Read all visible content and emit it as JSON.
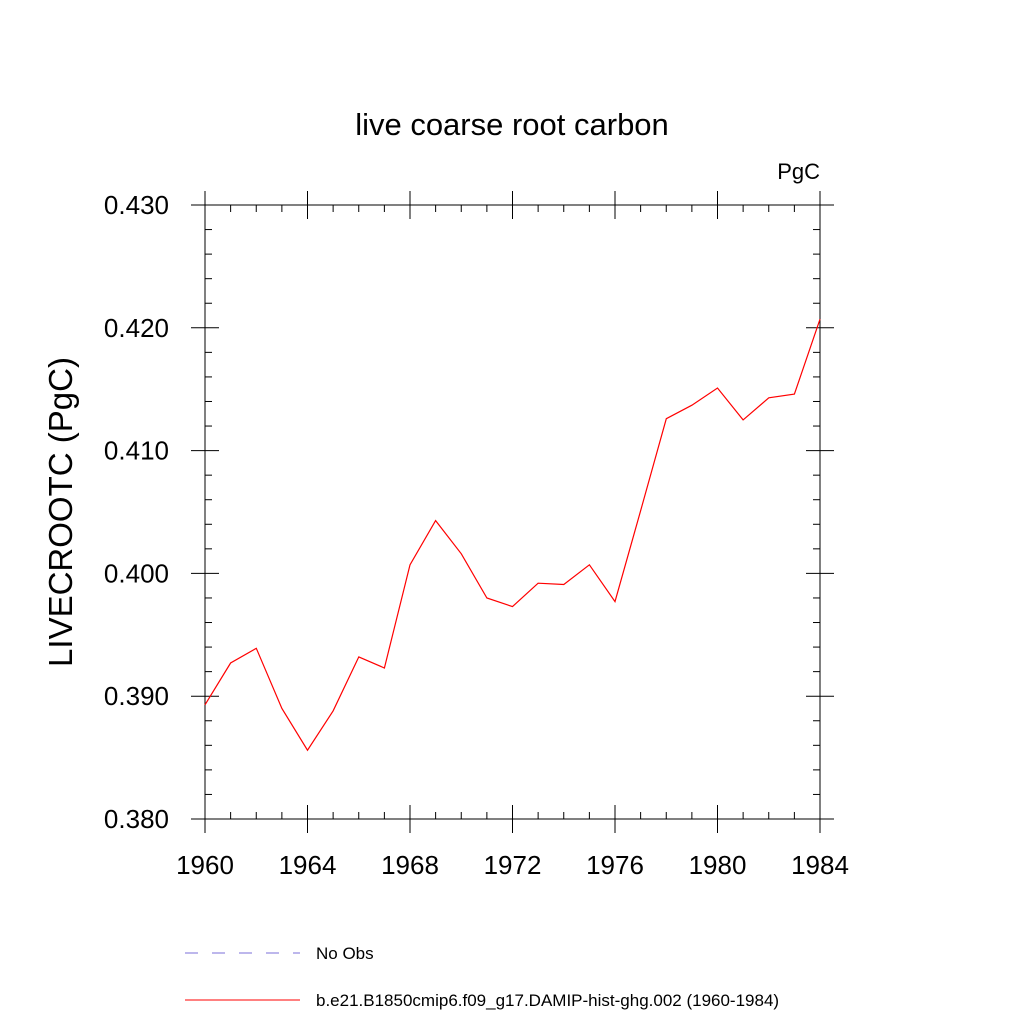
{
  "chart_data": {
    "type": "line",
    "title": "live coarse root carbon",
    "units_label": "PgC",
    "ylabel": "LIVECROOTC  (PgC)",
    "xlabel": "",
    "xlim": [
      1960,
      1984
    ],
    "ylim": [
      0.38,
      0.43
    ],
    "x_ticks": [
      1960,
      1964,
      1968,
      1972,
      1976,
      1980,
      1984
    ],
    "x_tick_labels": [
      "1960",
      "1964",
      "1968",
      "1972",
      "1976",
      "1980",
      "1984"
    ],
    "y_ticks": [
      0.38,
      0.39,
      0.4,
      0.41,
      0.42,
      0.43
    ],
    "y_tick_labels": [
      "0.380",
      "0.390",
      "0.400",
      "0.410",
      "0.420",
      "0.430"
    ],
    "y_minor_step": 0.002,
    "x_minor_step": 1,
    "grid": false,
    "series": [
      {
        "name": "b.e21.B1850cmip6.f09_g17.DAMIP-hist-ghg.002 (1960-1984)",
        "color": "#ff0000",
        "x": [
          1960,
          1961,
          1962,
          1963,
          1964,
          1965,
          1966,
          1967,
          1968,
          1969,
          1970,
          1971,
          1972,
          1973,
          1974,
          1975,
          1976,
          1977,
          1978,
          1979,
          1980,
          1981,
          1982,
          1983,
          1984
        ],
        "y": [
          0.3893,
          0.3927,
          0.3939,
          0.389,
          0.3856,
          0.3888,
          0.3932,
          0.3923,
          0.4007,
          0.4043,
          0.4016,
          0.398,
          0.3973,
          0.3992,
          0.3991,
          0.4007,
          0.3977,
          0.4051,
          0.4126,
          0.4137,
          0.4151,
          0.4125,
          0.4143,
          0.4146,
          0.4207
        ]
      }
    ],
    "legend": {
      "placement": "bottom",
      "entries": [
        {
          "label": "No Obs",
          "color": "#7b6fd8",
          "style": "dashed"
        },
        {
          "label": "b.e21.B1850cmip6.f09_g17.DAMIP-hist-ghg.002 (1960-1984)",
          "color": "#ff0000",
          "style": "solid"
        }
      ]
    }
  }
}
